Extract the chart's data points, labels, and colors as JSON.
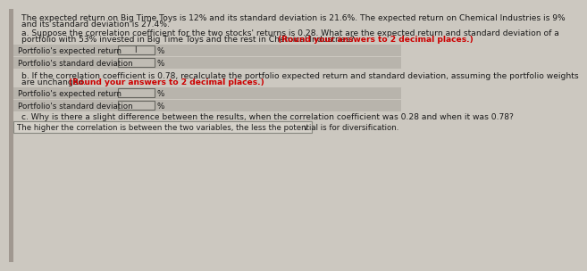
{
  "page_bg": "#ccc8c0",
  "content_bg": "#d8d4cc",
  "text_color": "#1a1a1a",
  "red_text_color": "#cc0000",
  "row_bg_color": "#b8b4ac",
  "input_box_color": "#c0bcb4",
  "answer_box_color": "#d4d0c8",
  "left_strip_color": "#a09890",
  "border_color": "#888880",
  "intro_line1": "The expected return on Big Time Toys is 12% and its standard deviation is 21.6%. The expected return on Chemical Industries is 9%",
  "intro_line2": "and its standard deviation is 27.4%.",
  "part_a_line1": "a. Suppose the correlation coefficient for the two stocks' returns is 0.28. What are the expected return and standard deviation of a",
  "part_a_line2": "portfolio with 53% invested in Big Time Toys and the rest in Chemical Industries? ",
  "part_a_bold": "(Round your answers to 2 decimal places.)",
  "part_a_row1_label": "Portfolio's expected return",
  "part_a_row2_label": "Portfolio's standard deviation",
  "part_b_line1": "b. If the correlation coefficient is 0.78, recalculate the portfolio expected return and standard deviation, assuming the portfolio weights",
  "part_b_line2": "are unchanged. ",
  "part_b_bold": "(Round your answers to 2 decimal places.)",
  "part_b_row1_label": "Portfolio's expected return",
  "part_b_row2_label": "Portfolio's standard deviation",
  "part_c_text": "c. Why is there a slight difference between the results, when the correlation coefficient was 0.28 and when it was 0.78?",
  "part_c_answer": "The higher the correlation is between the two variables, the less the potential is for diversification.",
  "percent_symbol": "%"
}
